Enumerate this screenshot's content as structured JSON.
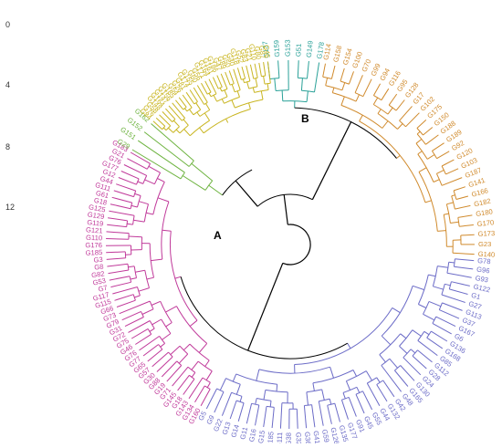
{
  "scale": {
    "ticks": [
      "0",
      "4",
      "8",
      "12"
    ]
  },
  "nodes": {
    "a": "A",
    "b": "B"
  },
  "colors": {
    "backbone": "#000000",
    "teal": "#2aa198",
    "orange": "#d08a2c",
    "yellow": "#c9b520",
    "green": "#6db33f",
    "magenta": "#c0399a",
    "blue": "#6b6bc7"
  },
  "clusters": [
    {
      "id": "teal",
      "color": "teal",
      "leaves": [
        "G137",
        "G159",
        "G153",
        "G51",
        "G149",
        "G178"
      ]
    },
    {
      "id": "orange",
      "color": "orange",
      "leaves": [
        "G114",
        "G158",
        "G154",
        "G100",
        "G70",
        "G99",
        "G94",
        "G116",
        "G95",
        "G128",
        "G17",
        "G102",
        "G175",
        "G150",
        "G188",
        "G189",
        "G92",
        "G120",
        "G103",
        "G187",
        "G141",
        "G166",
        "G182",
        "G180",
        "G170",
        "G173",
        "G23",
        "G140"
      ]
    },
    {
      "id": "blue",
      "color": "blue",
      "leaves": [
        "G78",
        "G96",
        "G93",
        "G122",
        "G1",
        "G27",
        "G113",
        "G37",
        "G167",
        "G6",
        "G136",
        "G168",
        "G85",
        "G112",
        "G28",
        "G24",
        "G130",
        "G165",
        "G48",
        "G42",
        "G132",
        "G44",
        "G55",
        "G45",
        "G91",
        "G177",
        "G135",
        "G126",
        "G59",
        "G41",
        "G36",
        "G32",
        "G38",
        "G111",
        "G185",
        "G15",
        "G16",
        "G11",
        "G14",
        "G13",
        "G22",
        "G9",
        "G5"
      ]
    },
    {
      "id": "magenta",
      "color": "magenta",
      "leaves": [
        "G160",
        "G134",
        "G143",
        "G18",
        "G145",
        "G71",
        "G19",
        "G88",
        "G30",
        "G57",
        "G65",
        "G77",
        "G76",
        "G46",
        "G75",
        "G72",
        "G31",
        "G79",
        "G73",
        "G66",
        "G115",
        "G117",
        "G7",
        "G53",
        "G82",
        "G8",
        "G3",
        "G185",
        "G176",
        "G110",
        "G121",
        "G119",
        "G129",
        "G125",
        "G18",
        "G61",
        "G111",
        "G44",
        "G12",
        "G177",
        "G76",
        "G21",
        "G183"
      ]
    },
    {
      "id": "green",
      "color": "green",
      "leaves": [
        "G29",
        "G151",
        "G152",
        "G162"
      ]
    },
    {
      "id": "yellow",
      "color": "yellow",
      "leaves": [
        "G84",
        "G76",
        "G58",
        "G148",
        "G164",
        "G147",
        "G156",
        "G185",
        "G54",
        "G26",
        "G81",
        "G174",
        "G155",
        "G60",
        "G56",
        "G171",
        "G164",
        "G161",
        "G186",
        "G47",
        "G89",
        "G50",
        "G40",
        "G118",
        "G52",
        "G83",
        "G21",
        "G110",
        "G80",
        "G87",
        "G46"
      ]
    }
  ]
}
